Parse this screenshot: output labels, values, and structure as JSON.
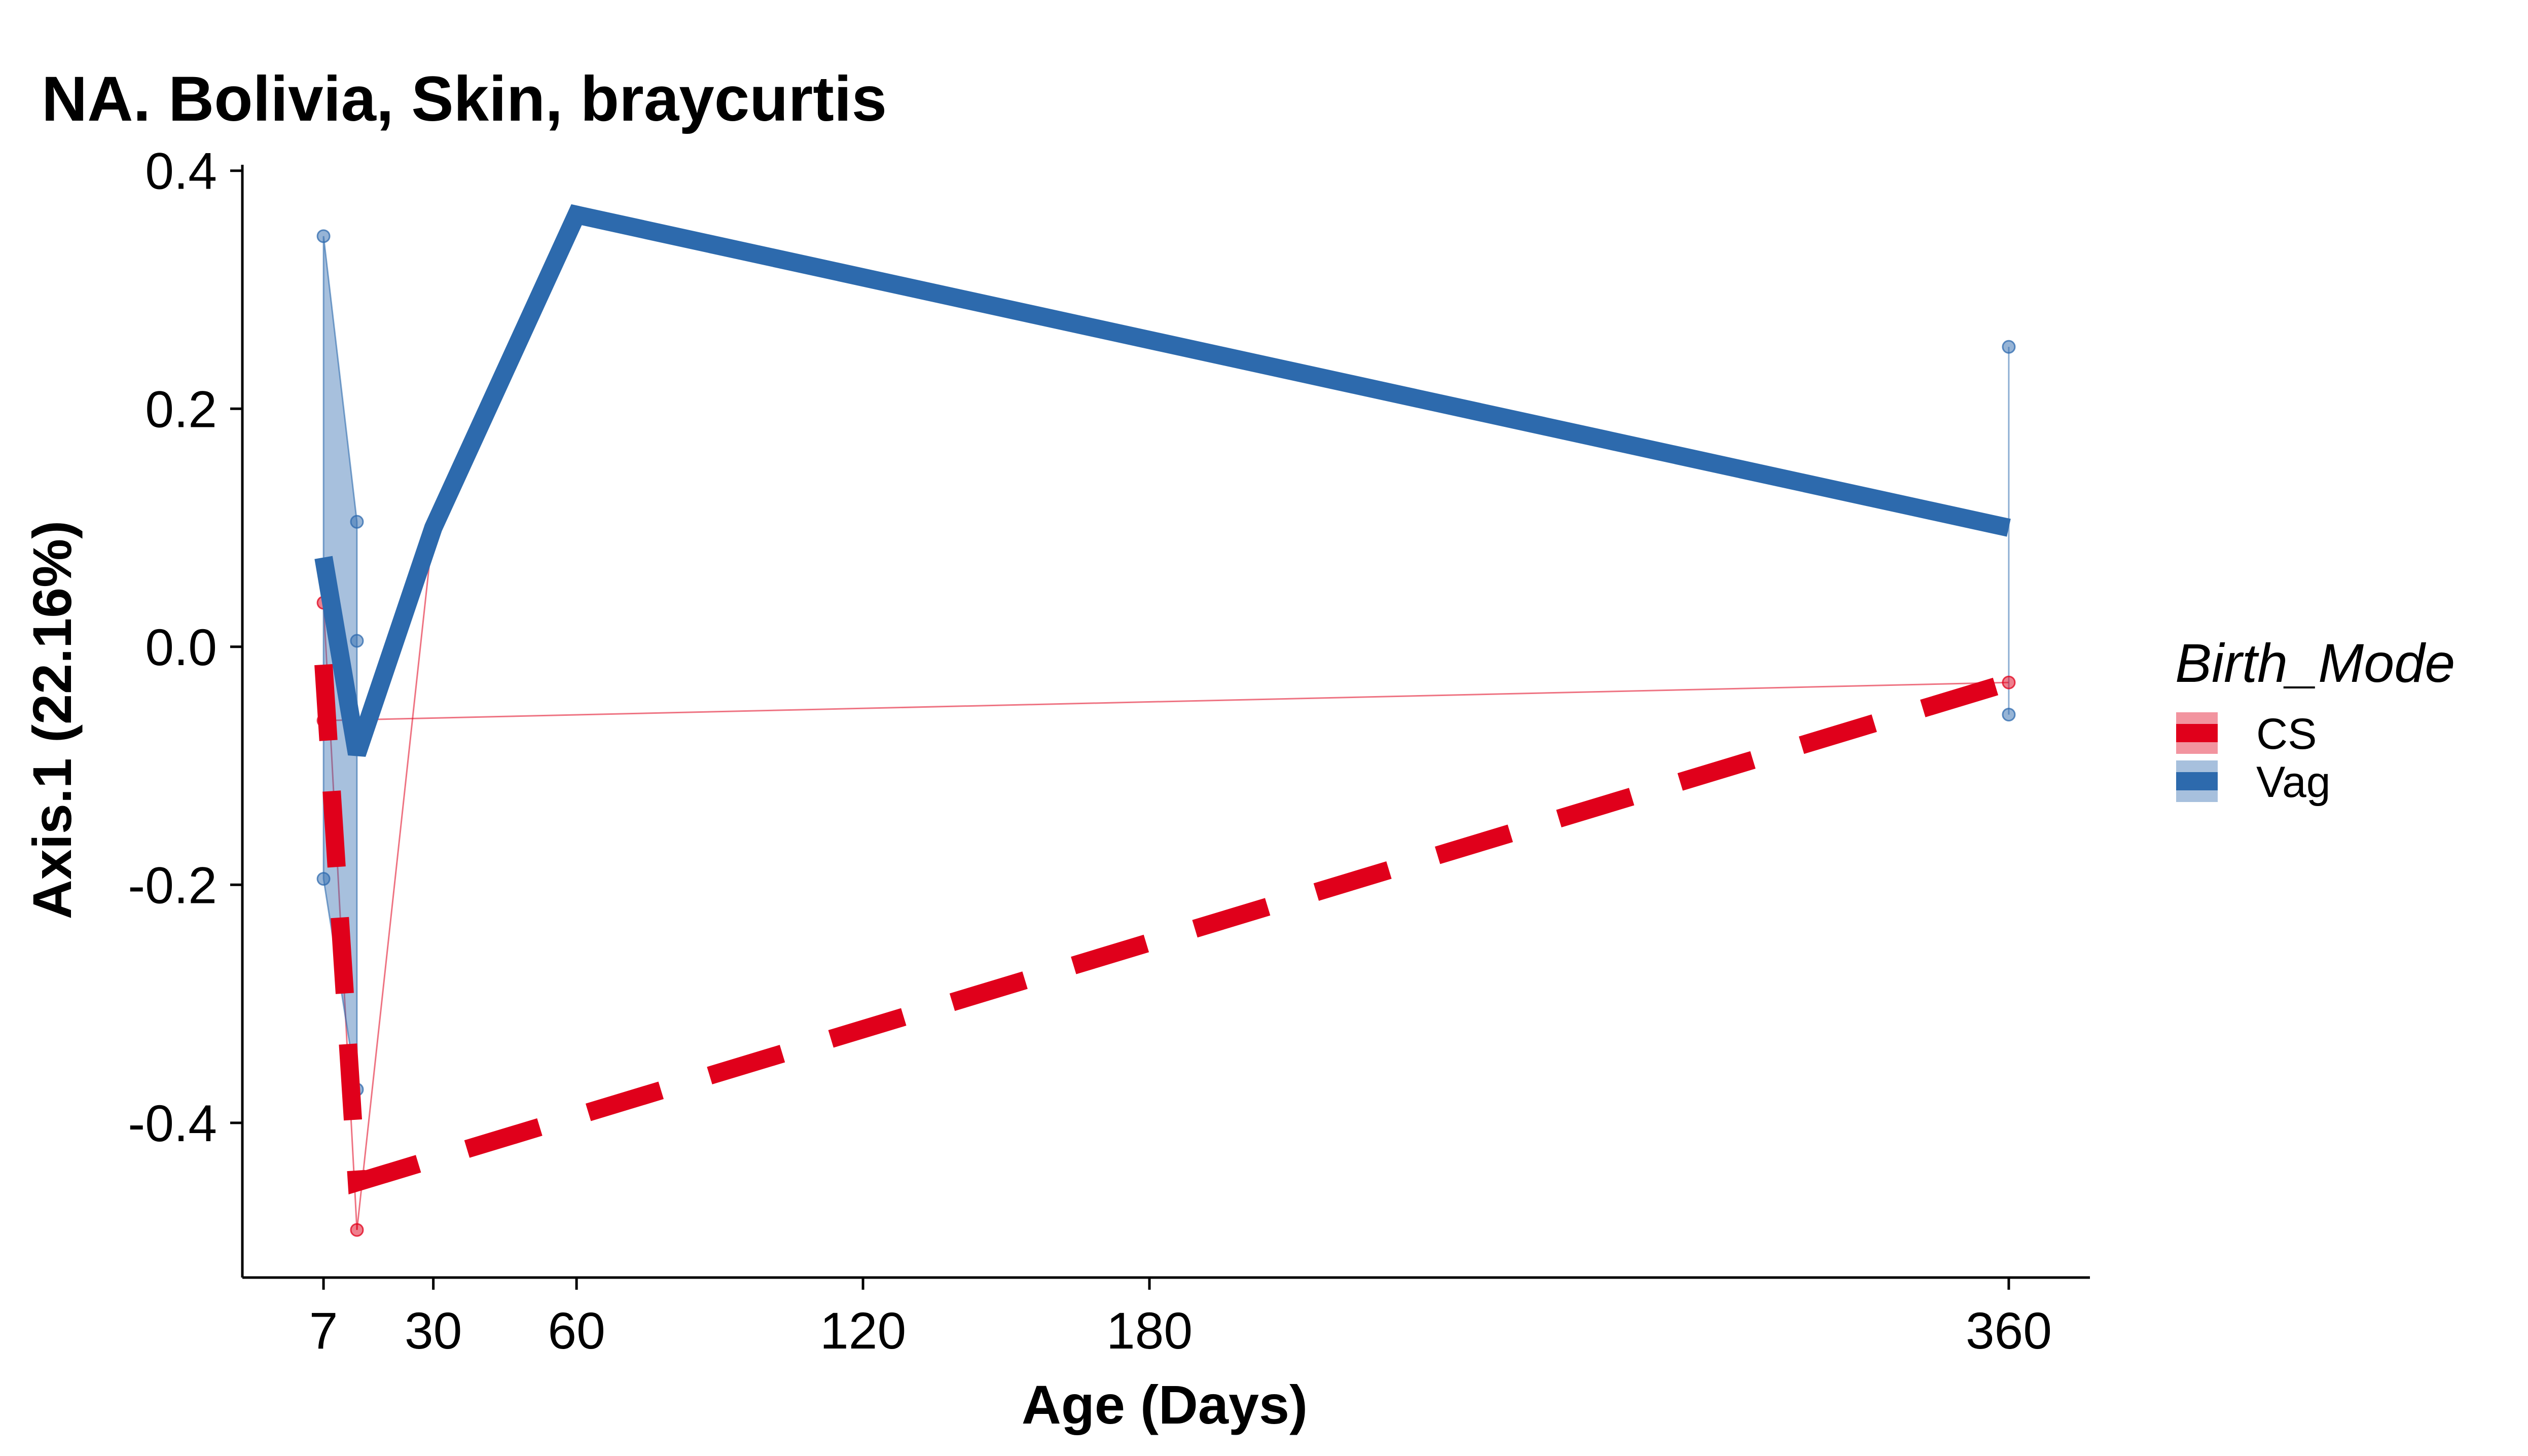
{
  "chart_data": {
    "type": "line",
    "title": "NA. Bolivia, Skin, braycurtis",
    "xlabel": "Age (Days)",
    "ylabel": "Axis.1 (22.16%)",
    "xlim": [
      -10,
      377
    ],
    "ylim": [
      -0.53,
      0.405
    ],
    "xticks": [
      7,
      30,
      60,
      120,
      180,
      360
    ],
    "yticks": [
      0.4,
      0.2,
      0.0,
      -0.2,
      -0.4
    ],
    "ytick_labels": [
      "0.4",
      "0.2",
      "0.0",
      "-0.2",
      "-0.4"
    ],
    "legend": {
      "title": "Birth_Mode",
      "position": "right",
      "entries": [
        "CS",
        "Vag"
      ]
    },
    "series": [
      {
        "name": "CS",
        "color": "#e0001b",
        "line_style": "dashed",
        "mean_line": {
          "x": [
            7,
            14,
            360
          ],
          "y": [
            -0.015,
            -0.45,
            -0.03
          ]
        },
        "points": {
          "x": [
            7,
            7,
            14,
            360
          ],
          "y": [
            0.037,
            -0.062,
            -0.49,
            -0.03
          ]
        },
        "thin_lines": [
          {
            "x": [
              7,
              14
            ],
            "y": [
              0.037,
              -0.49
            ]
          },
          {
            "x": [
              14,
              30
            ],
            "y": [
              -0.49,
              0.1
            ]
          },
          {
            "x": [
              7,
              360
            ],
            "y": [
              -0.062,
              -0.03
            ]
          }
        ]
      },
      {
        "name": "Vag",
        "color": "#2d6aad",
        "line_style": "solid",
        "mean_line": {
          "x": [
            7,
            14,
            30,
            60,
            360
          ],
          "y": [
            0.075,
            -0.09,
            0.1,
            0.363,
            0.1
          ]
        },
        "points": {
          "x": [
            7,
            7,
            14,
            14,
            14,
            360,
            360
          ],
          "y": [
            0.345,
            -0.195,
            0.105,
            0.005,
            -0.372,
            0.252,
            -0.057
          ]
        },
        "ribbon": {
          "x": [
            7,
            14
          ],
          "ymin": [
            -0.195,
            -0.372
          ],
          "ymax": [
            0.345,
            0.105
          ]
        },
        "thin_lines": [
          {
            "x": [
              360,
              360
            ],
            "y": [
              0.252,
              -0.057
            ]
          }
        ]
      }
    ]
  }
}
